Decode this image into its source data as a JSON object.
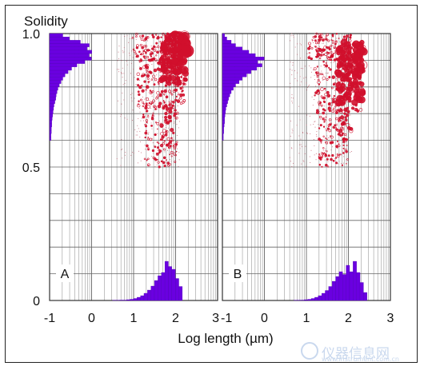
{
  "chart_data": {
    "type": "scatter",
    "ylabel": "Solidity",
    "xlabel": "Log length (µm)",
    "y_ticks": [
      "1.0",
      "0.5",
      "0"
    ],
    "y_tick_values": [
      1.0,
      0.5,
      0
    ],
    "xlim": [
      -1,
      3
    ],
    "ylim": [
      0,
      1.0
    ],
    "grid": true,
    "colors": {
      "points": "#d0102c",
      "histogram": "#6a00e0",
      "grid": "#888888"
    },
    "panels": [
      {
        "label": "A",
        "x_tick_labels": [
          "-1",
          "0",
          "1",
          "2",
          "3"
        ],
        "x_tick_values": [
          -1,
          0,
          1,
          2,
          3
        ],
        "solidity_histogram": {
          "y_start": 0.6,
          "bin_width": 0.0125,
          "lengths": [
            0.03,
            0.03,
            0.04,
            0.04,
            0.05,
            0.05,
            0.06,
            0.07,
            0.08,
            0.09,
            0.1,
            0.12,
            0.14,
            0.15,
            0.17,
            0.19,
            0.22,
            0.26,
            0.3,
            0.35,
            0.42,
            0.5,
            0.62,
            0.8,
            0.95,
            0.9,
            0.96,
            0.85,
            0.9,
            0.7,
            0.45,
            0.3
          ]
        },
        "length_histogram": {
          "x_start": 0.5,
          "bin_width": 0.083,
          "heights": [
            0.005,
            0.005,
            0.01,
            0.01,
            0.02,
            0.03,
            0.05,
            0.08,
            0.12,
            0.18,
            0.26,
            0.36,
            0.5,
            0.62,
            0.7,
            0.98,
            0.85,
            0.78,
            0.55,
            0.35
          ]
        },
        "clusters": [
          {
            "x": [
              0.95,
              2.15
            ],
            "y": [
              0.9,
              1.0
            ],
            "n": 90,
            "r": [
              0.6,
              1.6
            ],
            "fill": 0.5
          },
          {
            "x": [
              1.1,
              2.25
            ],
            "y": [
              0.72,
              0.95
            ],
            "n": 180,
            "r": [
              0.7,
              2.0
            ],
            "fill": 0.55
          },
          {
            "x": [
              1.2,
              2.05
            ],
            "y": [
              0.5,
              0.75
            ],
            "n": 120,
            "r": [
              0.5,
              1.6
            ],
            "fill": 0.55
          },
          {
            "x": [
              1.65,
              2.25
            ],
            "y": [
              0.81,
              0.99
            ],
            "n": 110,
            "r": [
              2.0,
              5.0
            ],
            "fill": 0.9
          },
          {
            "x": [
              1.95,
              2.3
            ],
            "y": [
              0.93,
              1.0
            ],
            "n": 18,
            "r": [
              5.0,
              8.0
            ],
            "fill": 0.92
          },
          {
            "x": [
              1.65,
              1.95
            ],
            "y": [
              0.58,
              0.72
            ],
            "n": 20,
            "r": [
              1.6,
              2.4
            ],
            "fill": 0.8
          }
        ]
      },
      {
        "label": "B",
        "x_tick_labels": [
          "-1",
          "0",
          "1",
          "2",
          "3"
        ],
        "x_tick_values": [
          -1,
          0,
          1,
          2,
          3
        ],
        "solidity_histogram": {
          "y_start": 0.6,
          "bin_width": 0.0125,
          "lengths": [
            0.02,
            0.02,
            0.03,
            0.03,
            0.04,
            0.05,
            0.05,
            0.06,
            0.07,
            0.08,
            0.1,
            0.12,
            0.14,
            0.17,
            0.2,
            0.25,
            0.3,
            0.38,
            0.45,
            0.55,
            0.65,
            0.78,
            0.9,
            0.8,
            0.95,
            0.75,
            0.6,
            0.45,
            0.3,
            0.2,
            0.1,
            0.05
          ]
        },
        "length_histogram": {
          "x_start": 0.7,
          "bin_width": 0.083,
          "heights": [
            0.005,
            0.008,
            0.01,
            0.02,
            0.03,
            0.05,
            0.08,
            0.12,
            0.18,
            0.25,
            0.35,
            0.48,
            0.6,
            0.72,
            0.65,
            0.88,
            0.72,
            0.98,
            0.7,
            0.45,
            0.2
          ]
        },
        "clusters": [
          {
            "x": [
              1.05,
              2.1
            ],
            "y": [
              0.9,
              1.0
            ],
            "n": 90,
            "r": [
              0.6,
              1.6
            ],
            "fill": 0.5
          },
          {
            "x": [
              1.2,
              2.3
            ],
            "y": [
              0.7,
              0.95
            ],
            "n": 180,
            "r": [
              0.7,
              2.0
            ],
            "fill": 0.55
          },
          {
            "x": [
              1.3,
              2.0
            ],
            "y": [
              0.5,
              0.72
            ],
            "n": 110,
            "r": [
              0.5,
              1.6
            ],
            "fill": 0.55
          },
          {
            "x": [
              1.75,
              2.35
            ],
            "y": [
              0.74,
              0.97
            ],
            "n": 130,
            "r": [
              2.0,
              4.6
            ],
            "fill": 0.9
          },
          {
            "x": [
              2.15,
              2.4
            ],
            "y": [
              0.88,
              0.96
            ],
            "n": 8,
            "r": [
              4.5,
              6.5
            ],
            "fill": 0.92
          },
          {
            "x": [
              1.8,
              2.1
            ],
            "y": [
              0.6,
              0.72
            ],
            "n": 18,
            "r": [
              1.6,
              2.5
            ],
            "fill": 0.8
          }
        ]
      }
    ]
  },
  "watermark": {
    "text": "仪器信息网",
    "sub": "www.instrument.com.cn"
  }
}
